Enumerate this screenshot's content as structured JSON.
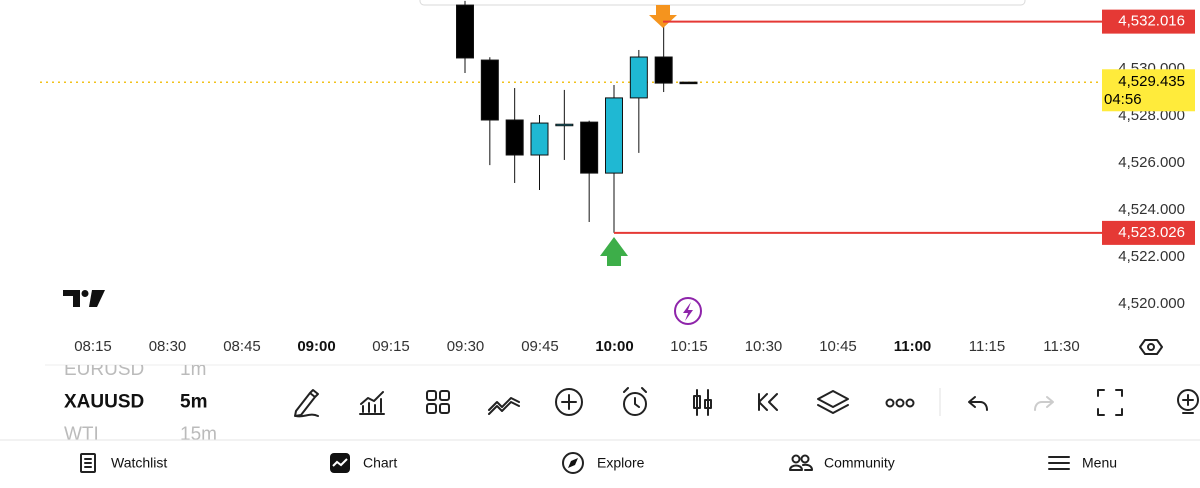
{
  "chart": {
    "up_color": "#1fb8d3",
    "down_color": "#000000",
    "candles": [
      {
        "open": 4532.72,
        "high": 4532.9,
        "low": 4529.83,
        "close": 4530.47
      },
      {
        "open": 4530.38,
        "high": 4530.5,
        "low": 4525.91,
        "close": 4527.83
      },
      {
        "open": 4527.83,
        "high": 4529.19,
        "low": 4525.15,
        "close": 4526.34
      },
      {
        "open": 4526.34,
        "high": 4528.04,
        "low": 4524.85,
        "close": 4527.7
      },
      {
        "open": 4527.62,
        "high": 4529.11,
        "low": 4526.13,
        "close": 4527.65
      },
      {
        "open": 4527.74,
        "high": 4527.8,
        "low": 4523.49,
        "close": 4525.57
      },
      {
        "open": 4525.57,
        "high": 4529.32,
        "low": 4523.03,
        "close": 4528.77
      },
      {
        "open": 4528.77,
        "high": 4530.81,
        "low": 4526.43,
        "close": 4530.51
      },
      {
        "open": 4530.51,
        "high": 4532.02,
        "low": 4529.02,
        "close": 4529.4
      },
      {
        "open": 4529.44,
        "high": 4529.44,
        "low": 4529.4,
        "close": 4529.435
      }
    ],
    "yticks": [
      {
        "value": 4520,
        "label": "4,520.000"
      },
      {
        "value": 4522,
        "label": "4,522.000"
      },
      {
        "value": 4524,
        "label": "4,524.000"
      },
      {
        "value": 4526,
        "label": "4,526.000"
      },
      {
        "value": 4528,
        "label": "4,528.000"
      },
      {
        "value": 4530,
        "label": "4,530.000"
      }
    ],
    "xticks": [
      "08:15",
      "08:30",
      "08:45",
      "09:00",
      "09:15",
      "09:30",
      "09:45",
      "10:00",
      "10:15",
      "10:30",
      "10:45",
      "11:00",
      "11:15",
      "11:30"
    ],
    "high_line": {
      "value": 4532.016,
      "label": "4,532.016"
    },
    "low_line": {
      "value": 4523.026,
      "label": "4,523.026"
    },
    "last_price": {
      "value": 4529.435,
      "label": "4,529.435",
      "countdown": "04:56"
    }
  },
  "toolbar": {
    "symbols": [
      {
        "symbol": "EURUSD",
        "interval": "1m"
      },
      {
        "symbol": "XAUUSD",
        "interval": "5m"
      },
      {
        "symbol": "WTI",
        "interval": "15m"
      }
    ]
  },
  "nav": [
    "Watchlist",
    "Chart",
    "Explore",
    "Community",
    "Menu"
  ]
}
